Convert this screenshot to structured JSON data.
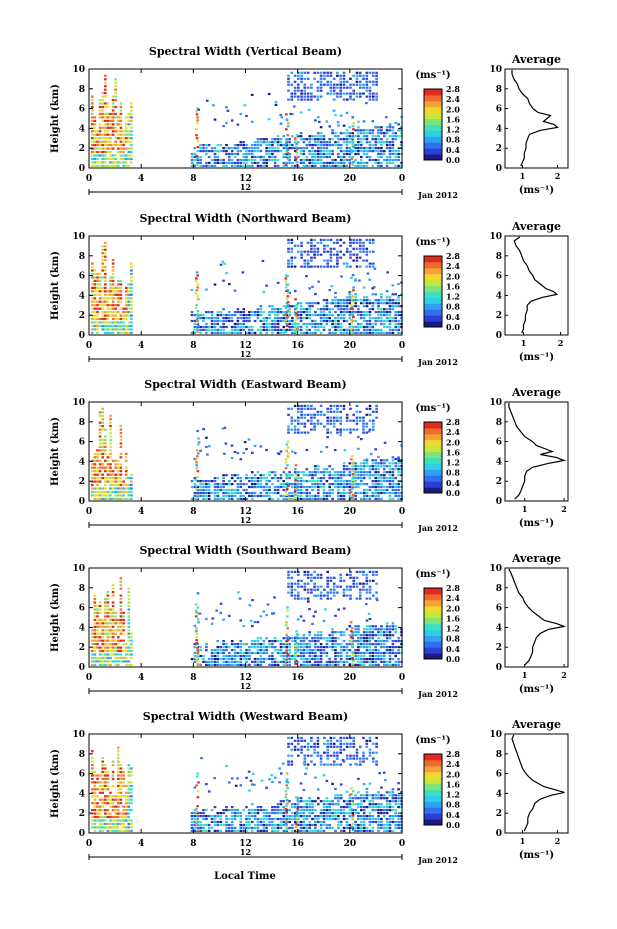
{
  "page": {
    "xlabel": "Local Time",
    "date_label": "Jan 2012",
    "day_label": "12"
  },
  "chart_data": [
    {
      "type": "heatmap",
      "title": "Spectral Width (Vertical Beam)",
      "ylabel": "Height (km)",
      "xlabel": "Local Time",
      "x_ticks": [
        "0",
        "4",
        "8",
        "12",
        "16",
        "20",
        "0"
      ],
      "y_ticks": [
        "0",
        "2",
        "4",
        "6",
        "8",
        "10"
      ],
      "xlim": [
        0,
        24
      ],
      "ylim": [
        0,
        10
      ],
      "colorbar": {
        "unit": "(ms⁻¹)",
        "ticks": [
          "0.0",
          "0.4",
          "0.8",
          "1.2",
          "1.6",
          "2.0",
          "2.4",
          "2.8"
        ],
        "range": [
          0,
          2.8
        ]
      },
      "average_profile": {
        "title": "Average",
        "xlabel": "(ms⁻¹)",
        "x_ticks": [
          "1",
          "2"
        ],
        "xlim": [
          0.5,
          2.3
        ],
        "y_ticks": [
          "0",
          "2",
          "4",
          "6",
          "8",
          "10"
        ]
      }
    },
    {
      "type": "heatmap",
      "title": "Spectral Width (Northward Beam)",
      "ylabel": "Height (km)",
      "xlabel": "Local Time",
      "x_ticks": [
        "0",
        "4",
        "8",
        "12",
        "16",
        "20",
        "0"
      ],
      "y_ticks": [
        "0",
        "2",
        "4",
        "6",
        "8",
        "10"
      ],
      "xlim": [
        0,
        24
      ],
      "ylim": [
        0,
        10
      ],
      "colorbar": {
        "unit": "(ms⁻¹)",
        "ticks": [
          "0.0",
          "0.4",
          "0.8",
          "1.2",
          "1.6",
          "2.0",
          "2.4",
          "2.8"
        ],
        "range": [
          0,
          2.8
        ]
      },
      "average_profile": {
        "title": "Average",
        "xlabel": "(ms⁻¹)",
        "x_ticks": [
          "1",
          "2"
        ],
        "xlim": [
          0.5,
          2.2
        ],
        "y_ticks": [
          "0",
          "2",
          "4",
          "6",
          "8",
          "10"
        ]
      }
    },
    {
      "type": "heatmap",
      "title": "Spectral Width (Eastward Beam)",
      "ylabel": "Height (km)",
      "xlabel": "Local Time",
      "x_ticks": [
        "0",
        "4",
        "8",
        "12",
        "16",
        "20",
        "0"
      ],
      "y_ticks": [
        "0",
        "2",
        "4",
        "6",
        "8",
        "10"
      ],
      "xlim": [
        0,
        24
      ],
      "ylim": [
        0,
        10
      ],
      "colorbar": {
        "unit": "(ms⁻¹)",
        "ticks": [
          "0.0",
          "0.4",
          "0.8",
          "1.2",
          "1.6",
          "2.0",
          "2.4",
          "2.8"
        ],
        "range": [
          0,
          2.8
        ]
      },
      "average_profile": {
        "title": "Average",
        "xlabel": "(ms⁻¹)",
        "x_ticks": [
          "1",
          "2"
        ],
        "xlim": [
          0.5,
          2.1
        ],
        "y_ticks": [
          "0",
          "2",
          "4",
          "6",
          "8",
          "10"
        ]
      }
    },
    {
      "type": "heatmap",
      "title": "Spectral Width (Southward Beam)",
      "ylabel": "Height (km)",
      "xlabel": "Local Time",
      "x_ticks": [
        "0",
        "4",
        "8",
        "12",
        "16",
        "20",
        "0"
      ],
      "y_ticks": [
        "0",
        "2",
        "4",
        "6",
        "8",
        "10"
      ],
      "xlim": [
        0,
        24
      ],
      "ylim": [
        0,
        10
      ],
      "colorbar": {
        "unit": "(ms⁻¹)",
        "ticks": [
          "0.0",
          "0.4",
          "0.8",
          "1.2",
          "1.6",
          "2.0",
          "2.4",
          "2.8"
        ],
        "range": [
          0,
          2.8
        ]
      },
      "average_profile": {
        "title": "Average",
        "xlabel": "(ms⁻¹)",
        "x_ticks": [
          "1",
          "2"
        ],
        "xlim": [
          0.5,
          2.1
        ],
        "y_ticks": [
          "0",
          "2",
          "4",
          "6",
          "8",
          "10"
        ]
      }
    },
    {
      "type": "heatmap",
      "title": "Spectral Width (Westward Beam)",
      "ylabel": "Height (km)",
      "xlabel": "Local Time",
      "x_ticks": [
        "0",
        "4",
        "8",
        "12",
        "16",
        "20",
        "0"
      ],
      "y_ticks": [
        "0",
        "2",
        "4",
        "6",
        "8",
        "10"
      ],
      "xlim": [
        0,
        24
      ],
      "ylim": [
        0,
        10
      ],
      "colorbar": {
        "unit": "(ms⁻¹)",
        "ticks": [
          "0.0",
          "0.4",
          "0.8",
          "1.2",
          "1.6",
          "2.0",
          "2.4",
          "2.8"
        ],
        "range": [
          0,
          2.8
        ]
      },
      "average_profile": {
        "title": "Average",
        "xlabel": "(ms⁻¹)",
        "x_ticks": [
          "1",
          "2"
        ],
        "xlim": [
          0.5,
          2.3
        ],
        "y_ticks": [
          "0",
          "2",
          "4",
          "6",
          "8",
          "10"
        ]
      }
    }
  ],
  "colormap": [
    "#1a1a80",
    "#2b3fd6",
    "#2f6ff0",
    "#2fa2f2",
    "#2fd0e6",
    "#3fe2b8",
    "#7fe27a",
    "#c8e63a",
    "#f2d72f",
    "#f5a23a",
    "#f06a2f",
    "#e02a20"
  ],
  "average_values_note_free": true,
  "average_profile_values": {
    "heights_km": [
      0.2,
      0.6,
      1.0,
      1.5,
      2.0,
      2.5,
      3.0,
      3.4,
      3.8,
      4.1,
      4.4,
      4.7,
      5.0,
      5.3,
      5.6,
      6.0,
      6.5,
      7.0,
      7.5,
      8.0,
      8.5,
      9.0,
      9.5,
      9.9
    ],
    "vertical": [
      0.95,
      1.0,
      1.05,
      1.05,
      1.1,
      1.1,
      1.15,
      1.2,
      1.5,
      2.0,
      1.9,
      1.6,
      1.7,
      1.8,
      1.45,
      1.3,
      1.2,
      1.15,
      1.0,
      0.9,
      0.85,
      0.75,
      0.7,
      0.7
    ],
    "northward": [
      0.95,
      1.0,
      1.0,
      1.05,
      1.05,
      1.1,
      1.1,
      1.2,
      1.5,
      1.9,
      1.8,
      1.6,
      1.5,
      1.4,
      1.3,
      1.25,
      1.15,
      1.1,
      1.0,
      0.95,
      0.9,
      0.8,
      0.75,
      0.9
    ],
    "eastward": [
      0.75,
      0.85,
      0.9,
      0.95,
      1.0,
      1.0,
      1.05,
      1.2,
      1.6,
      2.0,
      1.8,
      1.4,
      1.7,
      1.5,
      1.3,
      1.2,
      1.0,
      0.9,
      0.8,
      0.75,
      0.7,
      0.65,
      0.6,
      0.6
    ],
    "southward": [
      1.0,
      1.1,
      1.15,
      1.2,
      1.2,
      1.25,
      1.3,
      1.4,
      1.6,
      2.0,
      1.8,
      1.5,
      1.4,
      1.3,
      1.2,
      1.1,
      1.0,
      0.95,
      0.85,
      0.8,
      0.75,
      0.7,
      0.65,
      0.6
    ],
    "westward": [
      1.05,
      1.1,
      1.15,
      1.15,
      1.2,
      1.3,
      1.35,
      1.5,
      1.8,
      2.2,
      1.9,
      1.6,
      1.45,
      1.3,
      1.2,
      1.1,
      1.0,
      0.95,
      0.9,
      0.85,
      0.8,
      0.75,
      0.7,
      0.75
    ]
  }
}
